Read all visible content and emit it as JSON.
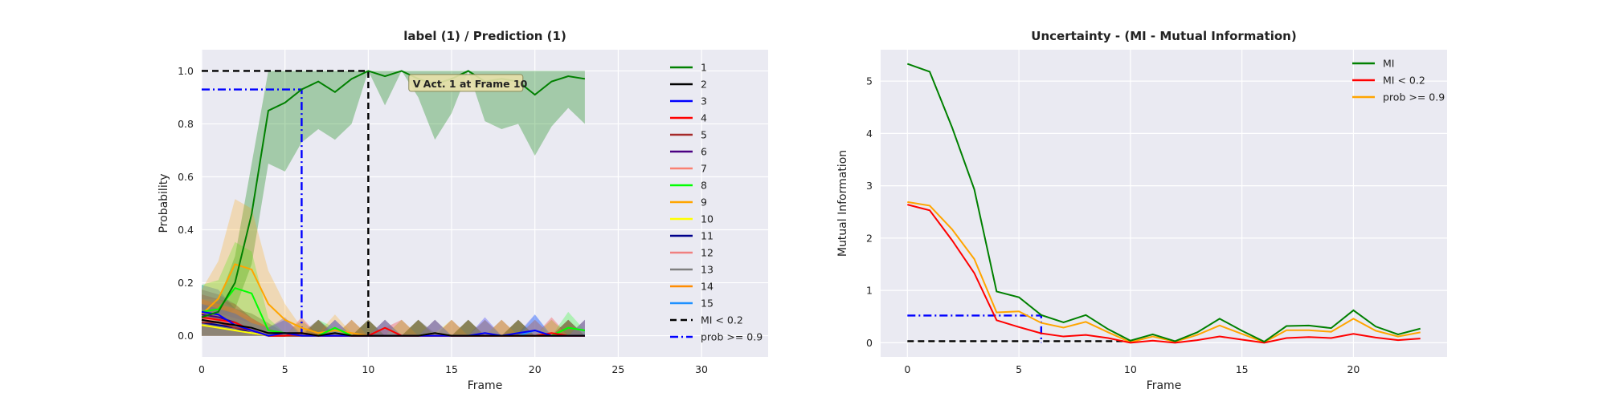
{
  "chart_data": [
    {
      "type": "line",
      "title": "label (1) / Prediction (1)",
      "xlabel": "Frame",
      "ylabel": "Probability",
      "xlim": [
        0,
        34
      ],
      "ylim": [
        -0.08,
        1.08
      ],
      "xticks": [
        "0",
        "5",
        "10",
        "15",
        "20",
        "25",
        "30"
      ],
      "yticks": [
        "0.0",
        "0.2",
        "0.4",
        "0.6",
        "0.8",
        "1.0"
      ],
      "grid": true,
      "legend_position": "upper-right",
      "annotation": "Act. 1 at Frame 10",
      "annotation_marker": "V",
      "annotation_at": [
        13.3,
        0.95
      ],
      "series": [
        {
          "name": "1",
          "color": "#008000",
          "values": [
            0.07,
            0.09,
            0.2,
            0.46,
            0.85,
            0.88,
            0.93,
            0.96,
            0.92,
            0.97,
            1.0,
            0.98,
            1.0,
            0.97,
            0.95,
            0.97,
            1.0,
            0.96,
            0.97,
            0.96,
            0.91,
            0.96,
            0.98,
            0.97
          ],
          "band_upper": [
            0.11,
            0.13,
            0.3,
            0.65,
            1.0,
            1.0,
            1.0,
            1.0,
            1.0,
            1.0,
            1.0,
            1.0,
            1.0,
            1.0,
            1.0,
            1.0,
            1.0,
            1.0,
            1.0,
            1.0,
            1.0,
            1.0,
            1.0,
            1.0
          ],
          "band_lower": [
            0.04,
            0.06,
            0.1,
            0.27,
            0.65,
            0.62,
            0.73,
            0.78,
            0.74,
            0.8,
            1.0,
            0.87,
            1.0,
            0.9,
            0.74,
            0.84,
            1.0,
            0.81,
            0.78,
            0.8,
            0.68,
            0.79,
            0.86,
            0.8
          ]
        },
        {
          "name": "2",
          "color": "#000000",
          "values": [
            0.06,
            0.05,
            0.04,
            0.03,
            0.01,
            0.01,
            0.01,
            0.0,
            0.01,
            0.0,
            0.0,
            0.0,
            0.0,
            0.0,
            0.01,
            0.0,
            0.0,
            0.0,
            0.0,
            0.0,
            0.0,
            0.0,
            0.0,
            0.0
          ]
        },
        {
          "name": "3",
          "color": "#0000ff",
          "values": [
            0.09,
            0.08,
            0.04,
            0.02,
            0.0,
            0.01,
            0.0,
            0.0,
            0.0,
            0.0,
            0.0,
            0.0,
            0.0,
            0.0,
            0.0,
            0.0,
            0.0,
            0.01,
            0.0,
            0.01,
            0.02,
            0.0,
            0.0,
            0.0
          ]
        },
        {
          "name": "4",
          "color": "#ff0000",
          "values": [
            0.07,
            0.06,
            0.05,
            0.02,
            0.0,
            0.0,
            0.01,
            0.0,
            0.0,
            0.0,
            0.0,
            0.03,
            0.0,
            0.0,
            0.0,
            0.0,
            0.0,
            0.0,
            0.0,
            0.0,
            0.0,
            0.01,
            0.0,
            0.0
          ]
        },
        {
          "name": "5",
          "color": "#a52a2a",
          "values": [
            0.05,
            0.05,
            0.03,
            0.02,
            0.0,
            0.0,
            0.0,
            0.0,
            0.0,
            0.0,
            0.0,
            0.0,
            0.0,
            0.0,
            0.0,
            0.0,
            0.0,
            0.0,
            0.0,
            0.0,
            0.0,
            0.0,
            0.0,
            0.0
          ]
        },
        {
          "name": "6",
          "color": "#4b0082",
          "values": [
            0.08,
            0.07,
            0.05,
            0.02,
            0.0,
            0.0,
            0.01,
            0.0,
            0.0,
            0.0,
            0.0,
            0.0,
            0.0,
            0.0,
            0.0,
            0.0,
            0.0,
            0.0,
            0.0,
            0.0,
            0.0,
            0.0,
            0.0,
            0.0
          ]
        },
        {
          "name": "7",
          "color": "#fa8072",
          "values": [
            0.06,
            0.06,
            0.04,
            0.02,
            0.0,
            0.0,
            0.0,
            0.0,
            0.0,
            0.0,
            0.0,
            0.0,
            0.0,
            0.0,
            0.0,
            0.0,
            0.0,
            0.0,
            0.0,
            0.0,
            0.0,
            0.0,
            0.0,
            0.0
          ]
        },
        {
          "name": "8",
          "color": "#00ff00",
          "values": [
            0.09,
            0.1,
            0.18,
            0.16,
            0.02,
            0.01,
            0.0,
            0.0,
            0.03,
            0.0,
            0.0,
            0.0,
            0.0,
            0.0,
            0.0,
            0.0,
            0.0,
            0.0,
            0.0,
            0.0,
            0.0,
            0.0,
            0.03,
            0.02
          ]
        },
        {
          "name": "9",
          "color": "#ffa500",
          "values": [
            0.08,
            0.14,
            0.27,
            0.25,
            0.12,
            0.06,
            0.03,
            0.01,
            0.02,
            0.01,
            0.0,
            0.0,
            0.0,
            0.0,
            0.0,
            0.0,
            0.0,
            0.0,
            0.0,
            0.0,
            0.0,
            0.0,
            0.0,
            0.0
          ]
        },
        {
          "name": "10",
          "color": "#ffff00",
          "values": [
            0.04,
            0.03,
            0.02,
            0.01,
            0.0,
            0.0,
            0.0,
            0.0,
            0.0,
            0.0,
            0.0,
            0.0,
            0.0,
            0.0,
            0.01,
            0.0,
            0.0,
            0.0,
            0.0,
            0.0,
            0.0,
            0.0,
            0.0,
            0.0
          ]
        },
        {
          "name": "11",
          "color": "#00008b",
          "values": [
            0.05,
            0.04,
            0.03,
            0.01,
            0.0,
            0.0,
            0.0,
            0.0,
            0.0,
            0.0,
            0.0,
            0.0,
            0.0,
            0.0,
            0.0,
            0.0,
            0.0,
            0.0,
            0.0,
            0.0,
            0.0,
            0.0,
            0.0,
            0.0
          ]
        },
        {
          "name": "12",
          "color": "#f08080",
          "values": [
            0.06,
            0.05,
            0.04,
            0.02,
            0.0,
            0.0,
            0.0,
            0.0,
            0.0,
            0.0,
            0.0,
            0.0,
            0.0,
            0.0,
            0.0,
            0.0,
            0.0,
            0.0,
            0.0,
            0.0,
            0.0,
            0.0,
            0.0,
            0.0
          ]
        },
        {
          "name": "13",
          "color": "#808080",
          "values": [
            0.07,
            0.06,
            0.04,
            0.02,
            0.0,
            0.0,
            0.0,
            0.0,
            0.0,
            0.0,
            0.0,
            0.0,
            0.0,
            0.0,
            0.0,
            0.0,
            0.0,
            0.0,
            0.0,
            0.0,
            0.0,
            0.0,
            0.0,
            0.0
          ]
        },
        {
          "name": "14",
          "color": "#ff8c00",
          "values": [
            0.06,
            0.05,
            0.04,
            0.02,
            0.0,
            0.0,
            0.0,
            0.0,
            0.0,
            0.0,
            0.0,
            0.0,
            0.0,
            0.0,
            0.0,
            0.0,
            0.0,
            0.0,
            0.0,
            0.0,
            0.0,
            0.0,
            0.0,
            0.0
          ]
        },
        {
          "name": "15",
          "color": "#1e90ff",
          "values": [
            0.05,
            0.04,
            0.03,
            0.01,
            0.0,
            0.0,
            0.0,
            0.0,
            0.0,
            0.0,
            0.0,
            0.0,
            0.0,
            0.0,
            0.0,
            0.0,
            0.0,
            0.0,
            0.0,
            0.0,
            0.02,
            0.0,
            0.0,
            0.0
          ]
        }
      ],
      "reference_lines": [
        {
          "name": "MI < 0.2",
          "color": "#000000",
          "style": "dashed",
          "points": [
            [
              0,
              1.0
            ],
            [
              10,
              1.0
            ],
            [
              10,
              0.0
            ]
          ]
        },
        {
          "name": "prob >= 0.9",
          "color": "#0000ff",
          "style": "dashdot",
          "points": [
            [
              0,
              0.93
            ],
            [
              6,
              0.93
            ],
            [
              6,
              0.0
            ]
          ]
        }
      ]
    },
    {
      "type": "line",
      "title": "Uncertainty - (MI - Mutual Information)",
      "xlabel": "Frame",
      "ylabel": "Mutual Information",
      "xlim": [
        -1.2,
        24.2
      ],
      "ylim": [
        -0.27,
        5.6
      ],
      "xticks": [
        "0",
        "5",
        "10",
        "15",
        "20"
      ],
      "yticks": [
        "0",
        "1",
        "2",
        "3",
        "4",
        "5"
      ],
      "grid": true,
      "legend_position": "upper-right",
      "series": [
        {
          "name": "MI",
          "color": "#008000",
          "values": [
            5.33,
            5.18,
            4.12,
            2.93,
            0.98,
            0.87,
            0.53,
            0.39,
            0.53,
            0.26,
            0.04,
            0.16,
            0.03,
            0.2,
            0.46,
            0.23,
            0.02,
            0.32,
            0.33,
            0.28,
            0.62,
            0.31,
            0.16,
            0.27
          ]
        },
        {
          "name": "MI < 0.2",
          "color": "#ff0000",
          "values": [
            2.64,
            2.53,
            1.96,
            1.33,
            0.43,
            0.3,
            0.18,
            0.12,
            0.15,
            0.09,
            0.0,
            0.04,
            0.0,
            0.05,
            0.12,
            0.06,
            0.0,
            0.09,
            0.11,
            0.09,
            0.17,
            0.1,
            0.05,
            0.08
          ]
        },
        {
          "name": "prob >= 0.9",
          "color": "#ffa500",
          "values": [
            2.69,
            2.62,
            2.17,
            1.6,
            0.58,
            0.6,
            0.38,
            0.29,
            0.4,
            0.2,
            0.01,
            0.12,
            0.02,
            0.15,
            0.33,
            0.17,
            0.01,
            0.24,
            0.24,
            0.21,
            0.46,
            0.23,
            0.12,
            0.2
          ]
        }
      ],
      "reference_lines": [
        {
          "name": "MI < 0.2",
          "color": "#000000",
          "style": "dashed",
          "points": [
            [
              0,
              0.03
            ],
            [
              10,
              0.03
            ]
          ]
        },
        {
          "name": "prob >= 0.9",
          "color": "#0000ff",
          "style": "dashdot",
          "points": [
            [
              0,
              0.52
            ],
            [
              6,
              0.52
            ],
            [
              6,
              0.0
            ]
          ]
        }
      ]
    }
  ]
}
